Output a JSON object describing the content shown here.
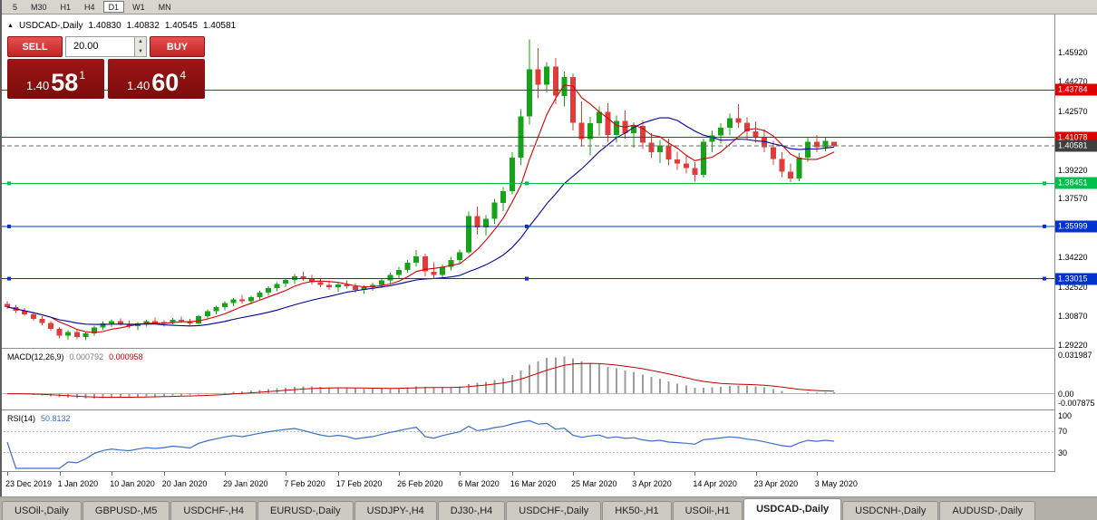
{
  "toolbar": {
    "timeframes": [
      "5",
      "M30",
      "H1",
      "H4",
      "D1",
      "W1",
      "MN"
    ],
    "active": "D1"
  },
  "chart_header": {
    "marker": "▲",
    "symbol": "USDCAD-,Daily",
    "open": "1.40830",
    "high": "1.40832",
    "low": "1.40545",
    "close": "1.40581"
  },
  "trade_panel": {
    "sell_label": "SELL",
    "buy_label": "BUY",
    "volume": "20.00",
    "icons": {
      "spinner_up": "▲",
      "spinner_down": "▼"
    },
    "bid": {
      "big": "1.40",
      "pips": "58",
      "frac": "1"
    },
    "ask": {
      "big": "1.40",
      "pips": "60",
      "frac": "4"
    },
    "colors": {
      "button": "#d32f2f",
      "quote_bg": "#8a1010"
    }
  },
  "bottom_tabs": {
    "tabs": [
      "USOil-,Daily",
      "GBPUSD-,M5",
      "USDCHF-,H4",
      "EURUSD-,Daily",
      "USDJPY-,H4",
      "DJ30-,H4",
      "USDCHF-,Daily",
      "HK50-,H1",
      "USOil-,H1",
      "USDCAD-,Daily",
      "USDCNH-,Daily",
      "AUDUSD-,Daily"
    ],
    "active": "USDCAD-,Daily"
  },
  "chart_data": {
    "type": "candlestick",
    "symbol": "USDCAD-",
    "timeframe": "Daily",
    "colors": {
      "up": "#17a317",
      "down": "#e03c3c",
      "background": "#ffffff"
    },
    "price_axis_labels": [
      {
        "value": 1.4592,
        "label": "1.45920"
      },
      {
        "value": 1.4427,
        "label": "1.44270"
      },
      {
        "value": 1.4257,
        "label": "1.42570"
      },
      {
        "value": 1.3922,
        "label": "1.39220"
      },
      {
        "value": 1.3757,
        "label": "1.37570"
      },
      {
        "value": 1.3422,
        "label": "1.34220"
      },
      {
        "value": 1.3252,
        "label": "1.32520"
      },
      {
        "value": 1.3087,
        "label": "1.30870"
      },
      {
        "value": 1.2922,
        "label": "1.29220"
      }
    ],
    "x_ticks": [
      {
        "label": "23 Dec 2019",
        "index": 0
      },
      {
        "label": "1 Jan 2020",
        "index": 6
      },
      {
        "label": "10 Jan 2020",
        "index": 12
      },
      {
        "label": "20 Jan 2020",
        "index": 18
      },
      {
        "label": "29 Jan 2020",
        "index": 25
      },
      {
        "label": "7 Feb 2020",
        "index": 32
      },
      {
        "label": "17 Feb 2020",
        "index": 38
      },
      {
        "label": "26 Feb 2020",
        "index": 45
      },
      {
        "label": "6 Mar 2020",
        "index": 52
      },
      {
        "label": "16 Mar 2020",
        "index": 58
      },
      {
        "label": "25 Mar 2020",
        "index": 65
      },
      {
        "label": "3 Apr 2020",
        "index": 72
      },
      {
        "label": "14 Apr 2020",
        "index": 79
      },
      {
        "label": "23 Apr 2020",
        "index": 86
      },
      {
        "label": "3 May 2020",
        "index": 93
      }
    ],
    "ohlc": [
      [
        1.3158,
        1.3172,
        1.3128,
        1.314
      ],
      [
        1.314,
        1.3152,
        1.3105,
        1.3118
      ],
      [
        1.3118,
        1.3135,
        1.309,
        1.3098
      ],
      [
        1.3098,
        1.311,
        1.3062,
        1.3072
      ],
      [
        1.3072,
        1.3088,
        1.3035,
        1.3048
      ],
      [
        1.3048,
        1.306,
        1.3005,
        1.3015
      ],
      [
        1.3015,
        1.3022,
        1.2962,
        1.2975
      ],
      [
        1.2975,
        1.3008,
        1.2952,
        1.2998
      ],
      [
        1.2998,
        1.301,
        1.2955,
        1.2968
      ],
      [
        1.2968,
        1.2995,
        1.295,
        1.2988
      ],
      [
        1.2988,
        1.3032,
        1.2975,
        1.3022
      ],
      [
        1.3022,
        1.3058,
        1.3008,
        1.3045
      ],
      [
        1.3045,
        1.307,
        1.3025,
        1.3058
      ],
      [
        1.3058,
        1.3075,
        1.3032,
        1.3042
      ],
      [
        1.3042,
        1.3062,
        1.3018,
        1.303
      ],
      [
        1.303,
        1.3055,
        1.3008,
        1.3045
      ],
      [
        1.3045,
        1.3068,
        1.3028,
        1.3058
      ],
      [
        1.3058,
        1.308,
        1.304,
        1.3048
      ],
      [
        1.3048,
        1.3065,
        1.3028,
        1.3055
      ],
      [
        1.3055,
        1.3078,
        1.304,
        1.3068
      ],
      [
        1.3068,
        1.3085,
        1.3048,
        1.3058
      ],
      [
        1.3058,
        1.3072,
        1.3035,
        1.3045
      ],
      [
        1.3045,
        1.3095,
        1.3038,
        1.3088
      ],
      [
        1.3088,
        1.3125,
        1.3075,
        1.3115
      ],
      [
        1.3115,
        1.3148,
        1.3098,
        1.3138
      ],
      [
        1.3138,
        1.3172,
        1.312,
        1.3162
      ],
      [
        1.3162,
        1.3192,
        1.3145,
        1.3182
      ],
      [
        1.3182,
        1.321,
        1.3158,
        1.3172
      ],
      [
        1.3172,
        1.3205,
        1.3155,
        1.3195
      ],
      [
        1.3195,
        1.3232,
        1.318,
        1.3222
      ],
      [
        1.3222,
        1.3258,
        1.3205,
        1.3248
      ],
      [
        1.3248,
        1.3282,
        1.323,
        1.3272
      ],
      [
        1.3272,
        1.3305,
        1.3252,
        1.3295
      ],
      [
        1.3295,
        1.3328,
        1.3272,
        1.3315
      ],
      [
        1.3315,
        1.3342,
        1.3288,
        1.33
      ],
      [
        1.33,
        1.3322,
        1.3268,
        1.3282
      ],
      [
        1.3282,
        1.3302,
        1.3252,
        1.3265
      ],
      [
        1.3265,
        1.3288,
        1.3238,
        1.3252
      ],
      [
        1.3252,
        1.3278,
        1.3228,
        1.3268
      ],
      [
        1.3268,
        1.3292,
        1.3245,
        1.3258
      ],
      [
        1.3258,
        1.3275,
        1.3222,
        1.3238
      ],
      [
        1.3238,
        1.3262,
        1.3215,
        1.3252
      ],
      [
        1.3252,
        1.3278,
        1.3232,
        1.3265
      ],
      [
        1.3265,
        1.3302,
        1.3248,
        1.3292
      ],
      [
        1.3292,
        1.3335,
        1.3275,
        1.3322
      ],
      [
        1.3322,
        1.3368,
        1.3305,
        1.3352
      ],
      [
        1.3352,
        1.3408,
        1.3335,
        1.3392
      ],
      [
        1.3392,
        1.3465,
        1.337,
        1.3428
      ],
      [
        1.3428,
        1.3445,
        1.3315,
        1.3342
      ],
      [
        1.3342,
        1.3395,
        1.3305,
        1.3322
      ],
      [
        1.3322,
        1.3382,
        1.3302,
        1.3368
      ],
      [
        1.3368,
        1.3425,
        1.3348,
        1.3408
      ],
      [
        1.3408,
        1.3468,
        1.3388,
        1.3452
      ],
      [
        1.3452,
        1.3685,
        1.3442,
        1.3658
      ],
      [
        1.3658,
        1.3712,
        1.3552,
        1.3595
      ],
      [
        1.3595,
        1.3665,
        1.3548,
        1.3642
      ],
      [
        1.3642,
        1.3758,
        1.3612,
        1.3735
      ],
      [
        1.3735,
        1.3825,
        1.3688,
        1.3802
      ],
      [
        1.3802,
        1.4022,
        1.3782,
        1.3992
      ],
      [
        1.3992,
        1.4268,
        1.3952,
        1.4228
      ],
      [
        1.4228,
        1.4668,
        1.4182,
        1.4495
      ],
      [
        1.4495,
        1.4618,
        1.4332,
        1.4408
      ],
      [
        1.4408,
        1.4538,
        1.4365,
        1.4512
      ],
      [
        1.4512,
        1.4562,
        1.4298,
        1.4345
      ],
      [
        1.4345,
        1.4482,
        1.4285,
        1.4452
      ],
      [
        1.4452,
        1.4472,
        1.4148,
        1.4192
      ],
      [
        1.4192,
        1.4312,
        1.4062,
        1.4098
      ],
      [
        1.4098,
        1.4225,
        1.4005,
        1.4188
      ],
      [
        1.4188,
        1.4285,
        1.4115,
        1.4252
      ],
      [
        1.4252,
        1.4302,
        1.4082,
        1.4122
      ],
      [
        1.4122,
        1.4232,
        1.4078,
        1.4202
      ],
      [
        1.4202,
        1.4262,
        1.4102,
        1.4132
      ],
      [
        1.4132,
        1.4195,
        1.4048,
        1.4172
      ],
      [
        1.4172,
        1.4205,
        1.4042,
        1.4078
      ],
      [
        1.4078,
        1.4132,
        1.3992,
        1.4022
      ],
      [
        1.4022,
        1.4092,
        1.3962,
        1.4062
      ],
      [
        1.4062,
        1.4102,
        1.3948,
        1.3982
      ],
      [
        1.3982,
        1.4025,
        1.3922,
        1.3958
      ],
      [
        1.3958,
        1.4002,
        1.3902,
        1.3932
      ],
      [
        1.3932,
        1.3965,
        1.3855,
        1.3895
      ],
      [
        1.3895,
        1.4102,
        1.3878,
        1.4082
      ],
      [
        1.4082,
        1.4148,
        1.4022,
        1.4118
      ],
      [
        1.4118,
        1.4188,
        1.4072,
        1.4162
      ],
      [
        1.4162,
        1.4242,
        1.4118,
        1.4218
      ],
      [
        1.4218,
        1.4298,
        1.4162,
        1.4192
      ],
      [
        1.4192,
        1.4222,
        1.4092,
        1.4142
      ],
      [
        1.4142,
        1.4198,
        1.4078,
        1.4112
      ],
      [
        1.4112,
        1.4152,
        1.4022,
        1.4052
      ],
      [
        1.4052,
        1.4088,
        1.3952,
        1.3985
      ],
      [
        1.3985,
        1.4022,
        1.3882,
        1.3912
      ],
      [
        1.3912,
        1.3958,
        1.3852,
        1.3872
      ],
      [
        1.3872,
        1.4018,
        1.3858,
        1.3992
      ],
      [
        1.3992,
        1.4112,
        1.3968,
        1.4082
      ],
      [
        1.4082,
        1.4122,
        1.4022,
        1.4052
      ],
      [
        1.4052,
        1.4108,
        1.4028,
        1.4088
      ],
      [
        1.4083,
        1.40832,
        1.40545,
        1.40581
      ]
    ],
    "overlays": {
      "moving_averages": [
        {
          "name": "ma-fast-line",
          "period": 6,
          "color": "#d40000"
        },
        {
          "name": "ma-slow-line",
          "period": 18,
          "color": "#000096"
        }
      ],
      "hlines": [
        {
          "value": 1.43784,
          "label": "1.43784",
          "color": "#e00000",
          "style": "solid",
          "handles": false
        },
        {
          "value": 1.41078,
          "label": "1.41078",
          "color": "#e00000",
          "style": "solid",
          "handles": false
        },
        {
          "value": 1.40581,
          "label": "1.40581",
          "color": "#6a6a6a",
          "badge_color": "#3f3f3f",
          "style": "dashed",
          "handles": false
        },
        {
          "value": 1.38451,
          "label": "1.38451",
          "color": "#00c04b",
          "style": "solid",
          "handles": true
        },
        {
          "value": 1.35999,
          "label": "1.35999",
          "color": "#0033cc",
          "style": "solid",
          "handles": true
        },
        {
          "value": 1.33015,
          "label": "1.33015",
          "color": "#0033cc",
          "style": "solid",
          "handles": true
        }
      ]
    },
    "indicators": [
      {
        "name": "MACD",
        "params": "(12,26,9)",
        "value_main": "0.000792",
        "value_signal": "0.000958",
        "hist_color": "#9e9e9e",
        "signal_color": "#c40000",
        "axis_labels": [
          {
            "value": 0.031987,
            "label": "0.031987"
          },
          {
            "value": 0,
            "label": "0.00"
          },
          {
            "value": -0.007875,
            "label": "-0.007875"
          }
        ]
      },
      {
        "name": "RSI",
        "params": "(14)",
        "value": "50.8132",
        "color": "#3b6ec9",
        "levels": [
          70,
          30
        ],
        "axis_labels": [
          {
            "value": 100,
            "label": "100"
          },
          {
            "value": 70,
            "label": "70"
          },
          {
            "value": 30,
            "label": "30"
          }
        ]
      }
    ]
  }
}
